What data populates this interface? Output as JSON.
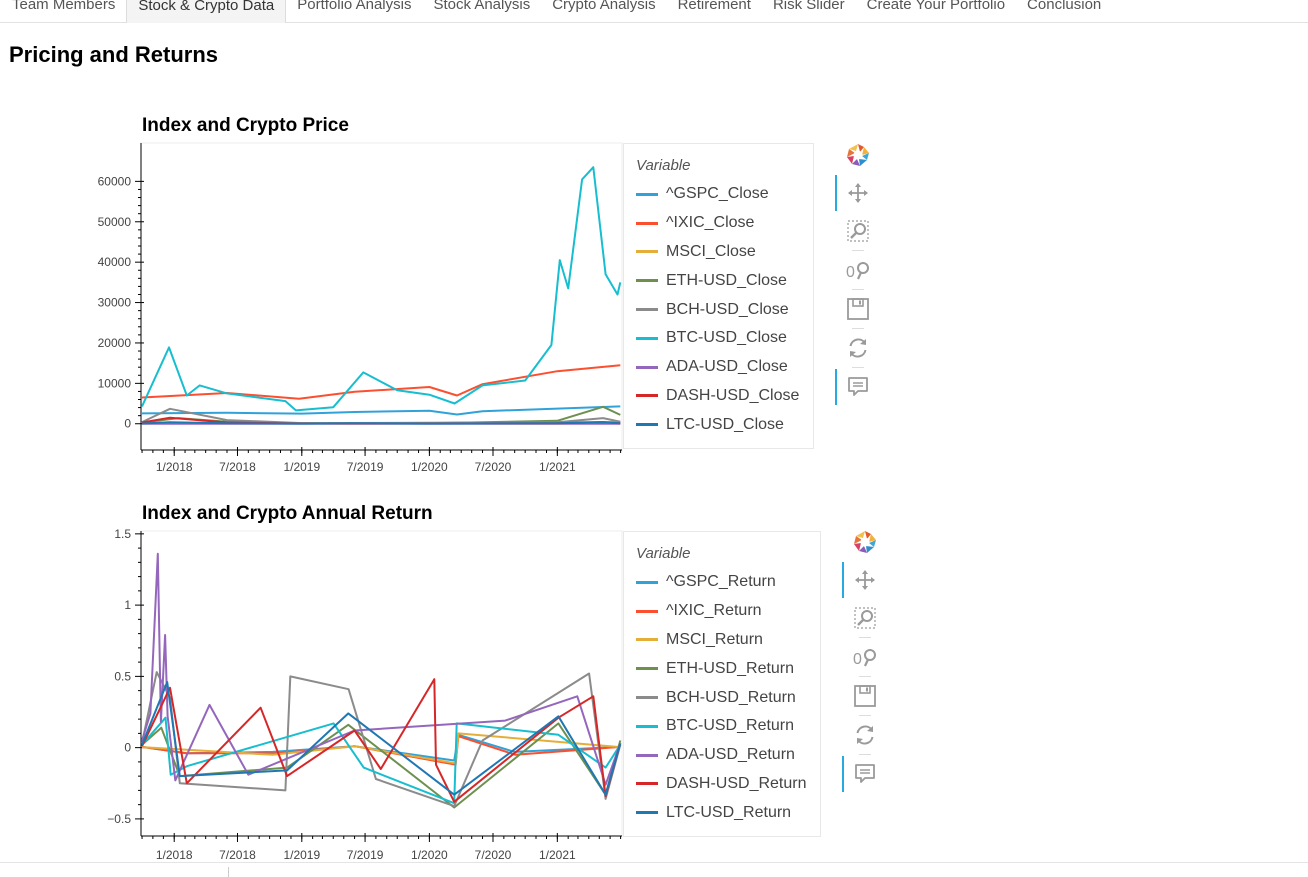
{
  "tabs": [
    {
      "label": "Team Members",
      "active": false
    },
    {
      "label": "Stock & Crypto Data",
      "active": true
    },
    {
      "label": "Portfolio Analysis",
      "active": false
    },
    {
      "label": "Stock Analysis",
      "active": false
    },
    {
      "label": "Crypto Analysis",
      "active": false
    },
    {
      "label": "Retirement",
      "active": false
    },
    {
      "label": "Risk Slider",
      "active": false
    },
    {
      "label": "Create Your Portfolio",
      "active": false
    },
    {
      "label": "Conclusion",
      "active": false
    }
  ],
  "page_title": "Pricing and Returns",
  "toolbar_tools": [
    "bokeh-logo-icon",
    "pan-icon",
    "box-zoom-icon",
    "wheel-zoom-icon",
    "save-icon",
    "reset-icon",
    "hover-icon"
  ],
  "chart_data": [
    {
      "type": "line",
      "title": "Index and Crypto Price",
      "xlabel": "",
      "ylabel": "",
      "x_ticks": [
        "1/2018",
        "7/2018",
        "1/2019",
        "7/2019",
        "1/2020",
        "7/2020",
        "1/2021"
      ],
      "y_ticks": [
        "0",
        "10000",
        "20000",
        "30000",
        "40000",
        "50000",
        "60000"
      ],
      "ylim": [
        -6500,
        69500
      ],
      "xlim": [
        "2017-09-28",
        "2021-07-05"
      ],
      "legend_title": "Variable",
      "legend_position": "right",
      "grid": false,
      "series": [
        {
          "name": "^GSPC_Close",
          "color": "#30a2da",
          "x": [
            "2017-10-01",
            "2018-06-01",
            "2019-01-01",
            "2019-06-01",
            "2020-01-01",
            "2020-03-20",
            "2020-06-01",
            "2021-01-01",
            "2021-06-30"
          ],
          "y": [
            2550,
            2720,
            2500,
            2900,
            3230,
            2300,
            3100,
            3760,
            4300
          ]
        },
        {
          "name": "^IXIC_Close",
          "color": "#fc4f30",
          "x": [
            "2017-10-01",
            "2018-06-01",
            "2018-12-24",
            "2019-06-01",
            "2020-01-01",
            "2020-03-20",
            "2020-06-01",
            "2021-01-01",
            "2021-06-30"
          ],
          "y": [
            6500,
            7600,
            6200,
            7900,
            9100,
            7000,
            9800,
            13000,
            14500
          ]
        },
        {
          "name": "MSCI_Close",
          "color": "#e5ae38",
          "x": [
            "2017-10-01",
            "2019-01-01",
            "2020-01-01",
            "2021-01-01",
            "2021-06-30"
          ],
          "y": [
            120,
            150,
            260,
            380,
            450
          ]
        },
        {
          "name": "ETH-USD_Close",
          "color": "#6d904f",
          "x": [
            "2017-10-01",
            "2018-01-13",
            "2018-06-01",
            "2019-01-01",
            "2020-01-01",
            "2021-01-01",
            "2021-05-12",
            "2021-06-30"
          ],
          "y": [
            300,
            1400,
            500,
            140,
            130,
            730,
            4200,
            2200
          ]
        },
        {
          "name": "BCH-USD_Close",
          "color": "#8b8b8b",
          "x": [
            "2017-10-01",
            "2017-12-20",
            "2018-06-01",
            "2019-01-01",
            "2020-01-01",
            "2021-01-01",
            "2021-05-12",
            "2021-06-30"
          ],
          "y": [
            400,
            3700,
            900,
            160,
            200,
            350,
            1400,
            500
          ]
        },
        {
          "name": "BTC-USD_Close",
          "color": "#17becf",
          "x": [
            "2017-10-01",
            "2017-12-17",
            "2018-02-06",
            "2018-03-15",
            "2018-06-01",
            "2018-11-15",
            "2018-12-15",
            "2019-04-01",
            "2019-06-26",
            "2019-10-01",
            "2020-01-01",
            "2020-03-13",
            "2020-06-01",
            "2020-10-01",
            "2020-12-15",
            "2021-01-08",
            "2021-02-01",
            "2021-03-13",
            "2021-04-14",
            "2021-05-19",
            "2021-06-22",
            "2021-06-30"
          ],
          "y": [
            4300,
            18900,
            7000,
            9500,
            7500,
            5600,
            3300,
            4100,
            12700,
            8300,
            7200,
            5000,
            9500,
            10700,
            19500,
            40500,
            33500,
            60500,
            63500,
            37000,
            32000,
            35000
          ]
        },
        {
          "name": "ADA-USD_Close",
          "color": "#9467bd",
          "x": [
            "2017-10-01",
            "2018-01-04",
            "2019-01-01",
            "2021-01-01",
            "2021-06-30"
          ],
          "y": [
            0,
            1,
            0,
            0,
            1
          ]
        },
        {
          "name": "DASH-USD_Close",
          "color": "#d62728",
          "x": [
            "2017-10-01",
            "2017-12-20",
            "2018-06-01",
            "2019-01-01",
            "2020-01-01",
            "2021-01-01",
            "2021-05-12",
            "2021-06-30"
          ],
          "y": [
            300,
            1500,
            300,
            70,
            50,
            100,
            400,
            140
          ]
        },
        {
          "name": "LTC-USD_Close",
          "color": "#1f77b4",
          "x": [
            "2017-10-01",
            "2017-12-19",
            "2018-06-01",
            "2019-01-01",
            "2019-06-01",
            "2020-01-01",
            "2021-01-01",
            "2021-05-10",
            "2021-06-30"
          ],
          "y": [
            55,
            360,
            100,
            30,
            130,
            40,
            120,
            380,
            140
          ]
        }
      ]
    },
    {
      "type": "line",
      "title": "Index and Crypto Annual Return",
      "xlabel": "",
      "ylabel": "",
      "x_ticks": [
        "1/2018",
        "7/2018",
        "1/2019",
        "7/2019",
        "1/2020",
        "7/2020",
        "1/2021"
      ],
      "y_ticks": [
        "−0.5",
        "0",
        "0.5",
        "1",
        "1.5"
      ],
      "ylim": [
        -0.62,
        1.52
      ],
      "xlim": [
        "2017-09-28",
        "2021-07-05"
      ],
      "legend_title": "Variable",
      "legend_position": "right",
      "grid": false,
      "series": [
        {
          "name": "^GSPC_Return",
          "color": "#30a2da",
          "x": [
            "2017-10-01",
            "2018-02-05",
            "2018-10-10",
            "2019-06-01",
            "2020-03-12",
            "2020-03-24",
            "2020-09-01",
            "2021-06-30"
          ],
          "y": [
            0.005,
            -0.04,
            -0.03,
            0.01,
            -0.09,
            0.09,
            -0.03,
            0.005
          ]
        },
        {
          "name": "^IXIC_Return",
          "color": "#fc4f30",
          "x": [
            "2017-10-01",
            "2018-02-05",
            "2018-10-24",
            "2019-06-01",
            "2020-03-16",
            "2020-03-24",
            "2020-09-03",
            "2021-06-30"
          ],
          "y": [
            0.005,
            -0.04,
            -0.04,
            0.01,
            -0.12,
            0.08,
            -0.05,
            0.005
          ]
        },
        {
          "name": "MSCI_Return",
          "color": "#e5ae38",
          "x": [
            "2017-10-01",
            "2018-10-10",
            "2019-06-01",
            "2020-03-16",
            "2020-03-24",
            "2021-06-30"
          ],
          "y": [
            0.004,
            -0.05,
            0.01,
            -0.11,
            0.1,
            0.004
          ]
        },
        {
          "name": "ETH-USD_Return",
          "color": "#6d904f",
          "x": [
            "2017-10-01",
            "2017-11-25",
            "2018-01-17",
            "2018-11-20",
            "2019-05-14",
            "2020-03-12",
            "2021-01-04",
            "2021-05-19",
            "2021-06-30"
          ],
          "y": [
            0.02,
            0.14,
            -0.2,
            -0.14,
            0.16,
            -0.42,
            0.17,
            -0.33,
            0.05
          ]
        },
        {
          "name": "BCH-USD_Return",
          "color": "#8b8b8b",
          "x": [
            "2017-10-01",
            "2017-11-12",
            "2017-12-20",
            "2018-01-17",
            "2018-11-15",
            "2018-11-29",
            "2019-05-15",
            "2019-08-01",
            "2020-03-12",
            "2020-06-01",
            "2021-04-02",
            "2021-05-19",
            "2021-06-30"
          ],
          "y": [
            0.03,
            0.53,
            0.35,
            -0.25,
            -0.3,
            0.5,
            0.41,
            -0.22,
            -0.41,
            0.05,
            0.52,
            -0.36,
            0.02
          ]
        },
        {
          "name": "BTC-USD_Return",
          "color": "#17becf",
          "x": [
            "2017-10-01",
            "2017-12-07",
            "2017-12-22",
            "2018-02-06",
            "2019-04-02",
            "2019-06-27",
            "2020-03-12",
            "2020-03-19",
            "2021-01-04",
            "2021-05-19",
            "2021-06-30"
          ],
          "y": [
            0.02,
            0.21,
            -0.19,
            -0.13,
            0.17,
            -0.14,
            -0.39,
            0.17,
            0.09,
            -0.14,
            0.02
          ]
        },
        {
          "name": "ADA-USD_Return",
          "color": "#9467bd",
          "x": [
            "2017-10-01",
            "2017-10-25",
            "2017-11-15",
            "2017-11-24",
            "2017-12-06",
            "2017-12-13",
            "2018-01-04",
            "2018-04-12",
            "2018-08-01",
            "2019-06-01",
            "2020-08-05",
            "2021-02-27",
            "2021-05-19",
            "2021-06-30"
          ],
          "y": [
            0.05,
            0.24,
            1.36,
            0.18,
            0.79,
            0.22,
            -0.23,
            0.3,
            -0.19,
            0.12,
            0.19,
            0.36,
            -0.26,
            0.03
          ]
        },
        {
          "name": "DASH-USD_Return",
          "color": "#d62728",
          "x": [
            "2017-10-01",
            "2017-12-20",
            "2018-02-06",
            "2018-09-05",
            "2018-11-20",
            "2019-06-01",
            "2019-08-15",
            "2020-01-15",
            "2020-01-20",
            "2020-03-12",
            "2021-01-04",
            "2021-04-14",
            "2021-05-19",
            "2021-06-30"
          ],
          "y": [
            0.01,
            0.42,
            -0.25,
            0.28,
            -0.2,
            0.12,
            -0.15,
            0.48,
            -0.12,
            -0.38,
            0.21,
            0.36,
            -0.34,
            0.03
          ]
        },
        {
          "name": "LTC-USD_Return",
          "color": "#1f77b4",
          "x": [
            "2017-10-01",
            "2017-12-12",
            "2018-01-17",
            "2018-11-20",
            "2019-05-14",
            "2020-03-12",
            "2021-01-04",
            "2021-05-19",
            "2021-06-30"
          ],
          "y": [
            0.02,
            0.46,
            -0.2,
            -0.16,
            0.24,
            -0.33,
            0.22,
            -0.33,
            0.03
          ]
        }
      ]
    }
  ]
}
